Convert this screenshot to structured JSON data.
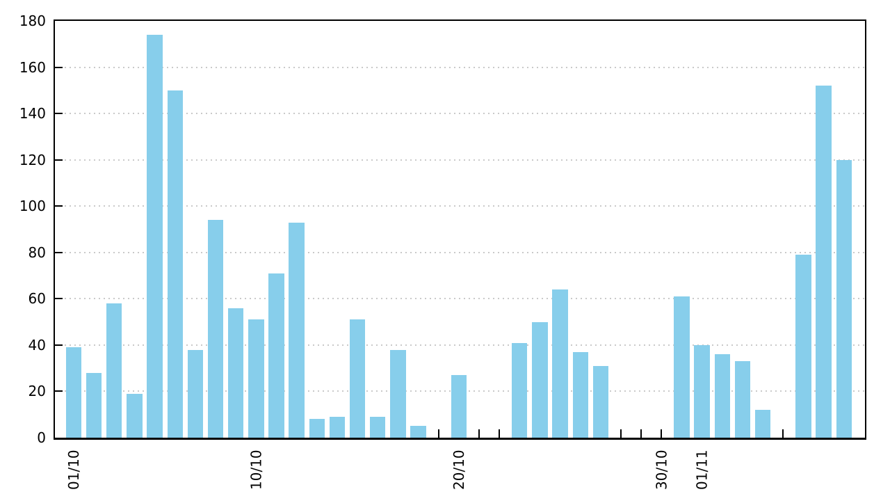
{
  "chart_data": {
    "type": "bar",
    "title": "",
    "xlabel": "",
    "ylabel": "",
    "legend": "none",
    "grid": "horizontal-dotted",
    "background_color": "#ffffff",
    "bar_color": "#87CEEB",
    "axis_color": "#000000",
    "grid_color": "#c9c9c9",
    "ylim": [
      0,
      180
    ],
    "ytick_step": 20,
    "ytick_labels": [
      "0",
      "20",
      "40",
      "60",
      "80",
      "100",
      "120",
      "140",
      "160",
      "180"
    ],
    "categories": [
      "01/10",
      "02/10",
      "03/10",
      "04/10",
      "05/10",
      "06/10",
      "07/10",
      "08/10",
      "09/10",
      "10/10",
      "11/10",
      "12/10",
      "13/10",
      "14/10",
      "15/10",
      "16/10",
      "17/10",
      "18/10",
      "19/10",
      "20/10",
      "21/10",
      "22/10",
      "23/10",
      "24/10",
      "25/10",
      "26/10",
      "27/10",
      "28/10",
      "29/10",
      "30/10",
      "31/10",
      "01/11",
      "02/11",
      "03/11",
      "04/11",
      "05/11",
      "06/11",
      "07/11",
      "08/11"
    ],
    "values": [
      39,
      28,
      58,
      19,
      174,
      150,
      38,
      94,
      56,
      51,
      71,
      93,
      8,
      9,
      51,
      9,
      38,
      5,
      null,
      27,
      null,
      null,
      41,
      50,
      64,
      37,
      31,
      null,
      null,
      null,
      61,
      40,
      36,
      33,
      12,
      null,
      79,
      152,
      120
    ],
    "xtick_labels": [
      {
        "label": "01/10",
        "index": 0
      },
      {
        "label": "10/10",
        "index": 9
      },
      {
        "label": "20/10",
        "index": 19
      },
      {
        "label": "30/10",
        "index": 29
      },
      {
        "label": "01/11",
        "index": 31
      }
    ]
  }
}
